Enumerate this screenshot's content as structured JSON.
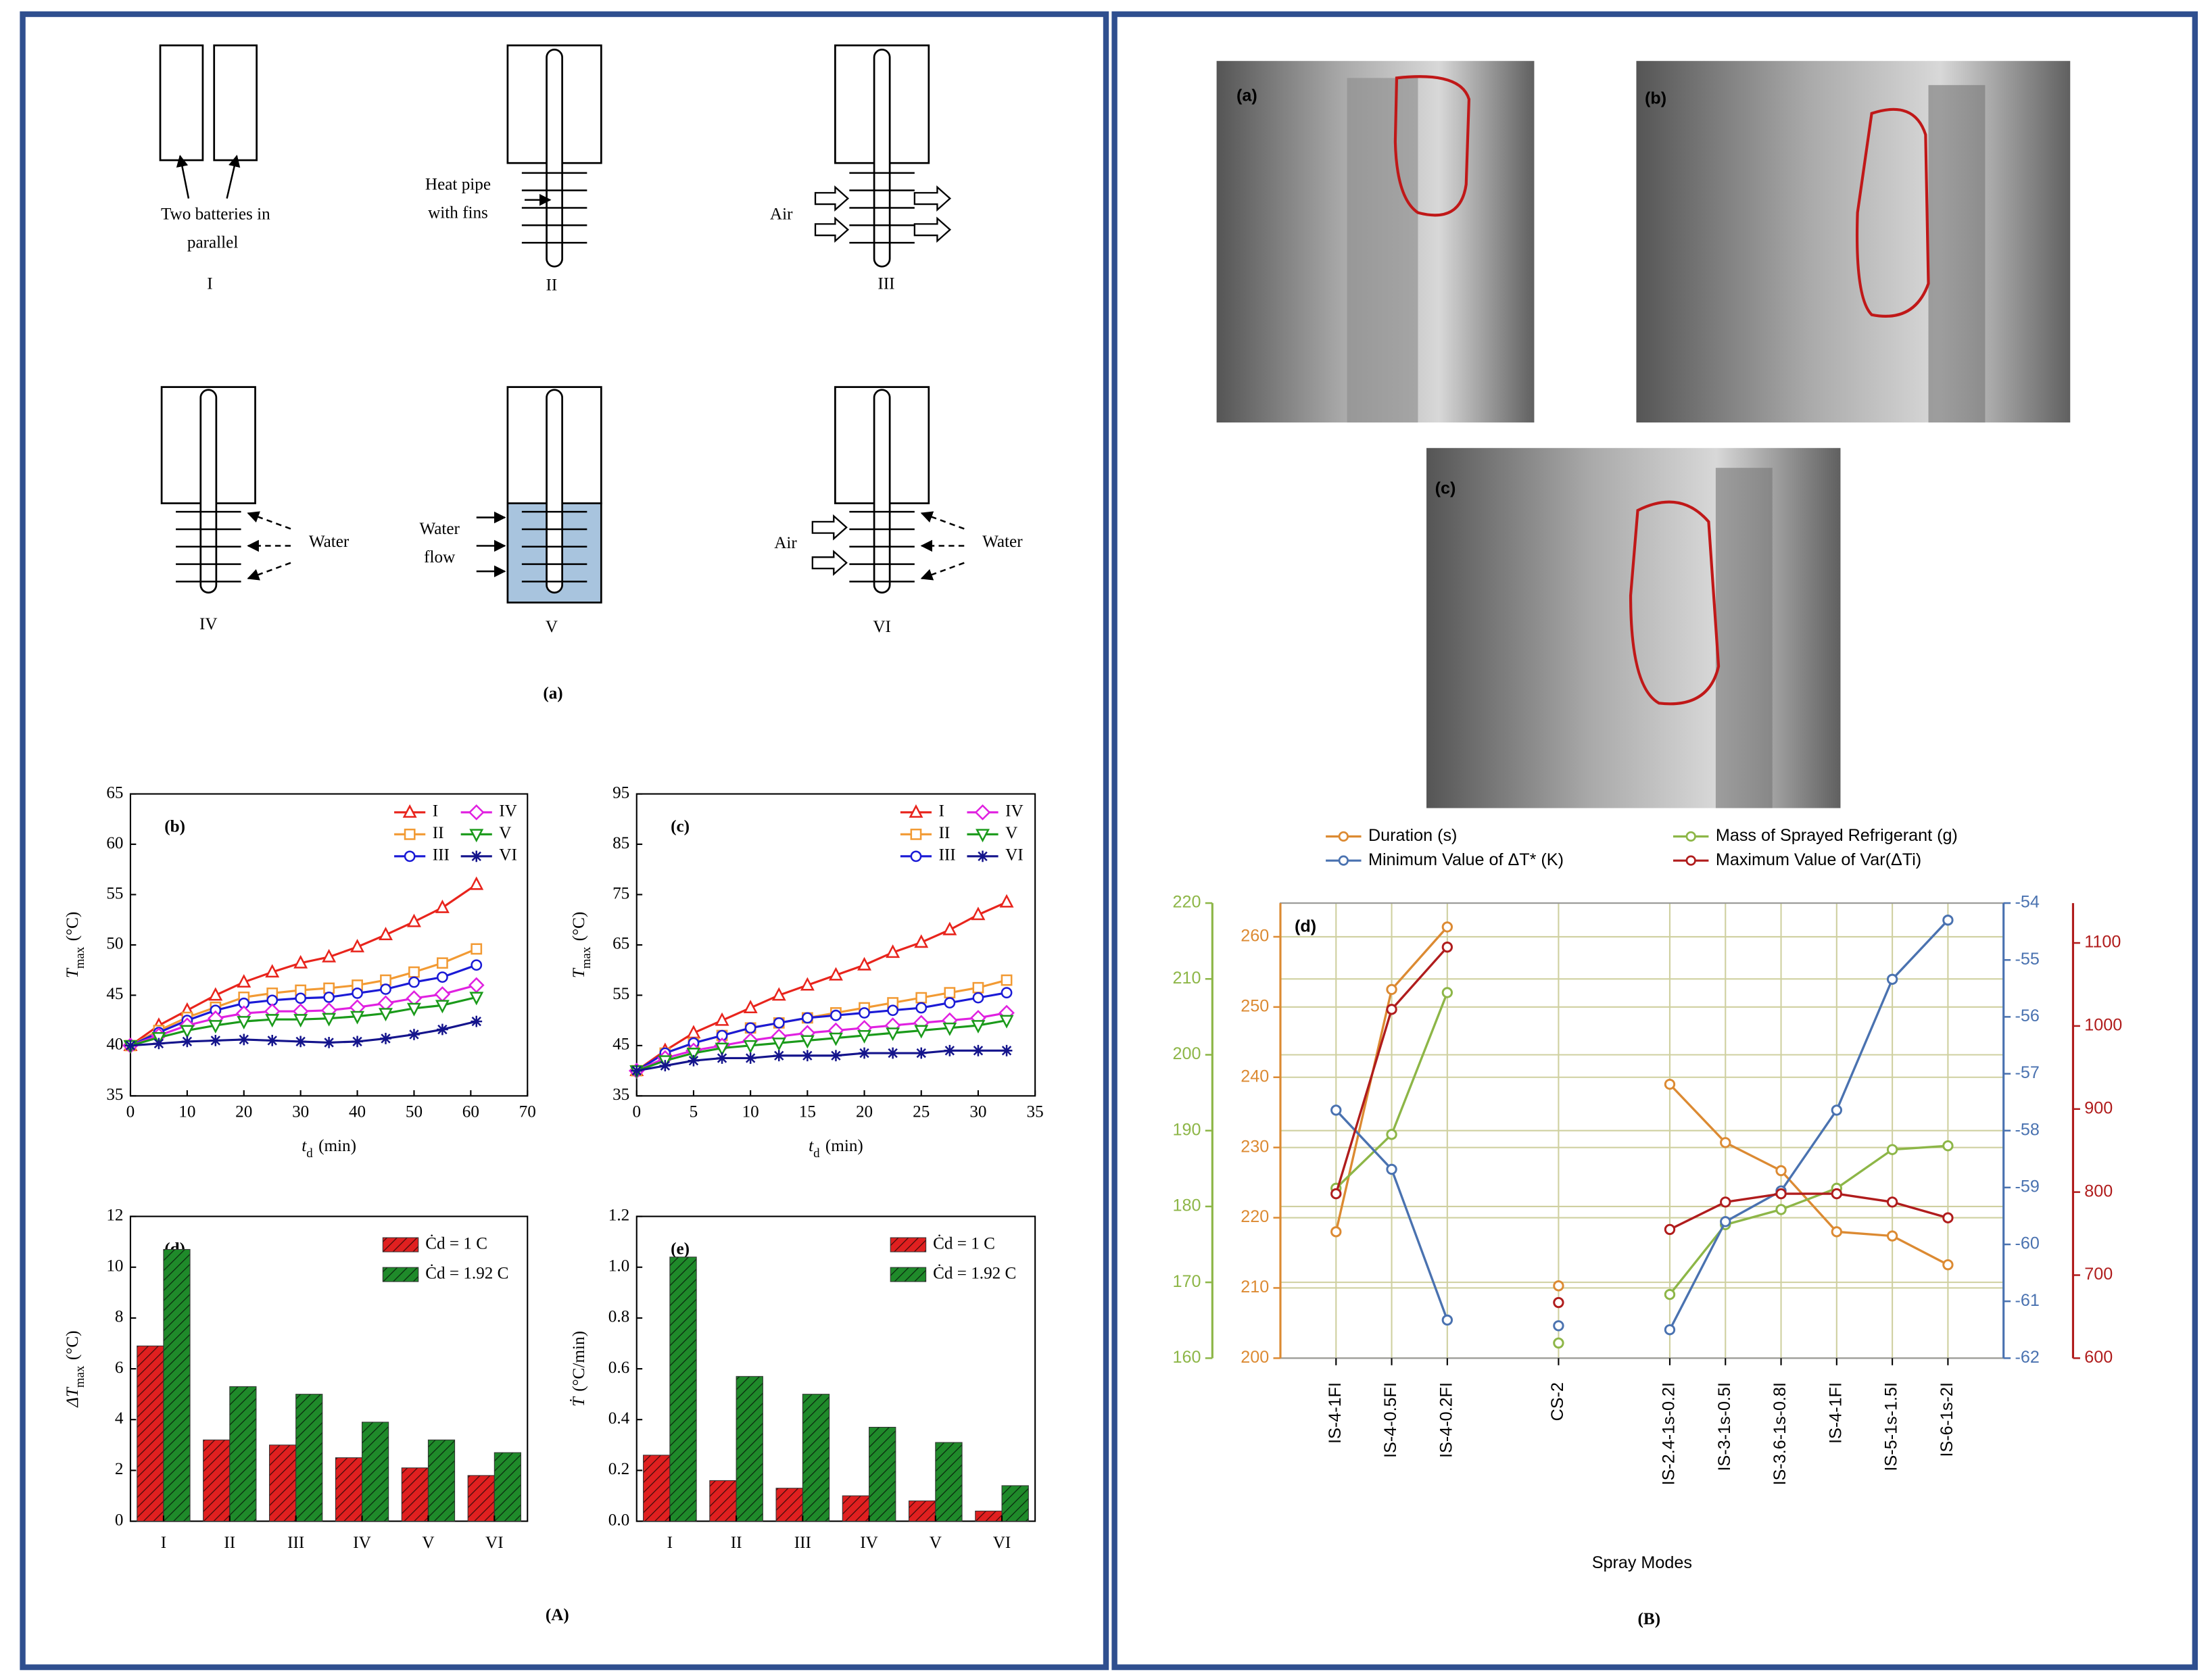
{
  "panel_labels": [
    "(A)",
    "(B)"
  ],
  "diagram": {
    "label": "(a)",
    "configs": [
      "I",
      "II",
      "III",
      "IV",
      "V",
      "VI"
    ],
    "annotations": [
      [
        "Two batteries in",
        "parallel"
      ],
      [
        "Heat pipe",
        "with fins"
      ],
      [
        "Air"
      ],
      [
        "Water"
      ],
      [
        "Water",
        "flow"
      ],
      [
        "Air"
      ],
      [
        "Water"
      ]
    ]
  },
  "photos": {
    "labels": [
      "(a)",
      "(b)",
      "(c)"
    ]
  },
  "chart_data": [
    {
      "type": "line",
      "label": "(b)",
      "xlabel": [
        "t",
        "d",
        "(min)"
      ],
      "ylabel": [
        "T",
        "max",
        "(°C)"
      ],
      "xlim": [
        0,
        70
      ],
      "xticks": [
        0,
        10,
        20,
        30,
        40,
        50,
        60,
        70
      ],
      "ylim": [
        35,
        65
      ],
      "yticks": [
        35,
        40,
        45,
        50,
        55,
        60,
        65
      ],
      "x": [
        0,
        5,
        10,
        15,
        20,
        25,
        30,
        35,
        40,
        45,
        50,
        55,
        61
      ],
      "series": [
        {
          "name": "I",
          "color": "#e8241c",
          "marker": "triangle",
          "values": [
            40,
            42,
            43.5,
            45,
            46.3,
            47.3,
            48.2,
            48.8,
            49.8,
            51,
            52.3,
            53.7,
            56
          ]
        },
        {
          "name": "II",
          "color": "#f29a33",
          "marker": "square",
          "values": [
            40,
            41.5,
            42.8,
            43.8,
            44.8,
            45.2,
            45.5,
            45.7,
            46,
            46.5,
            47.3,
            48.2,
            49.6
          ]
        },
        {
          "name": "III",
          "color": "#1a1ad6",
          "marker": "circle",
          "values": [
            40,
            41.3,
            42.5,
            43.5,
            44.2,
            44.5,
            44.7,
            44.8,
            45.2,
            45.6,
            46.3,
            46.8,
            48
          ]
        },
        {
          "name": "IV",
          "color": "#e020e0",
          "marker": "diamond",
          "values": [
            40,
            41,
            42,
            42.7,
            43.2,
            43.4,
            43.4,
            43.5,
            43.8,
            44.2,
            44.7,
            45.1,
            46
          ]
        },
        {
          "name": "V",
          "color": "#1a9a1a",
          "marker": "triangle-down",
          "values": [
            40,
            40.8,
            41.5,
            42,
            42.4,
            42.6,
            42.6,
            42.7,
            42.9,
            43.2,
            43.7,
            44,
            44.8
          ]
        },
        {
          "name": "VI",
          "color": "#14148c",
          "marker": "asterisk",
          "values": [
            40,
            40.2,
            40.4,
            40.5,
            40.6,
            40.5,
            40.4,
            40.3,
            40.4,
            40.7,
            41.1,
            41.6,
            42.4
          ]
        }
      ]
    },
    {
      "type": "line",
      "label": "(c)",
      "xlabel": [
        "t",
        "d",
        "(min)"
      ],
      "ylabel": [
        "T",
        "max",
        "(°C)"
      ],
      "xlim": [
        0,
        35
      ],
      "xticks": [
        0,
        5,
        10,
        15,
        20,
        25,
        30,
        35
      ],
      "ylim": [
        35,
        95
      ],
      "yticks": [
        35,
        45,
        55,
        65,
        75,
        85,
        95
      ],
      "x": [
        0,
        2.5,
        5,
        7.5,
        10,
        12.5,
        15,
        17.5,
        20,
        22.5,
        25,
        27.5,
        30,
        32.5
      ],
      "series": [
        {
          "name": "I",
          "color": "#e8241c",
          "marker": "triangle",
          "values": [
            40,
            44,
            47.5,
            50,
            52.5,
            55,
            57,
            59,
            61,
            63.5,
            65.5,
            68,
            71,
            73.5
          ]
        },
        {
          "name": "II",
          "color": "#f29a33",
          "marker": "square",
          "values": [
            40,
            43.5,
            45.5,
            47,
            48.5,
            49.5,
            50.5,
            51.5,
            52.5,
            53.5,
            54.5,
            55.5,
            56.5,
            58
          ]
        },
        {
          "name": "III",
          "color": "#1a1ad6",
          "marker": "circle",
          "values": [
            40,
            43.5,
            45.5,
            47,
            48.5,
            49.5,
            50.5,
            51,
            51.5,
            52,
            52.5,
            53.5,
            54.5,
            55.5
          ]
        },
        {
          "name": "IV",
          "color": "#e020e0",
          "marker": "diamond",
          "values": [
            40,
            42.5,
            44,
            45,
            46,
            46.8,
            47.5,
            48,
            48.5,
            49,
            49.5,
            50,
            50.5,
            51.5
          ]
        },
        {
          "name": "V",
          "color": "#1a9a1a",
          "marker": "triangle-down",
          "values": [
            40,
            42,
            43.5,
            44.5,
            45,
            45.5,
            46,
            46.5,
            47,
            47.5,
            48,
            48.5,
            49,
            50
          ]
        },
        {
          "name": "VI",
          "color": "#14148c",
          "marker": "asterisk",
          "values": [
            40,
            41,
            42,
            42.5,
            42.5,
            43,
            43,
            43,
            43.5,
            43.5,
            43.5,
            44,
            44,
            44
          ]
        }
      ]
    },
    {
      "type": "bar",
      "label": "(d)",
      "ylabel": [
        "ΔT",
        "max",
        "(°C)"
      ],
      "hatch": true,
      "ylim": [
        0,
        12
      ],
      "yticks": [
        0,
        2,
        4,
        6,
        8,
        10,
        12
      ],
      "categories": [
        "I",
        "II",
        "III",
        "IV",
        "V",
        "VI"
      ],
      "series": [
        {
          "name": "Ċd = 1 C",
          "color": "#e02020",
          "values": [
            6.9,
            3.2,
            3.0,
            2.5,
            2.1,
            1.8
          ]
        },
        {
          "name": "Ċd = 1.92 C",
          "color": "#1f8a2a",
          "values": [
            10.7,
            5.3,
            5.0,
            3.9,
            3.2,
            2.7
          ]
        }
      ]
    },
    {
      "type": "bar",
      "label": "(e)",
      "ylabel": [
        "Ṫ",
        "(°C/min)"
      ],
      "hatch": true,
      "ylim": [
        0,
        1.2
      ],
      "yticks": [
        {
          "value": 0,
          "label": "0.0"
        },
        0.2,
        0.4,
        0.6,
        0.8,
        {
          "value": 1,
          "label": "1.0"
        },
        1.2
      ],
      "categories": [
        "I",
        "II",
        "III",
        "IV",
        "V",
        "VI"
      ],
      "series": [
        {
          "name": "Ċd = 1 C",
          "color": "#e02020",
          "values": [
            0.26,
            0.16,
            0.13,
            0.1,
            0.08,
            0.04
          ]
        },
        {
          "name": "Ċd = 1.92 C",
          "color": "#1f8a2a",
          "values": [
            1.04,
            0.57,
            0.5,
            0.37,
            0.31,
            0.14
          ]
        }
      ]
    },
    {
      "type": "line",
      "label": "(d)",
      "xlabel": "Spray Modes",
      "grid": true,
      "categories": [
        "IS-4-1FI",
        "IS-4-0.5FI",
        "IS-4-0.2FI",
        null,
        "CS-2",
        null,
        "IS-2.4-1s-0.2I",
        "IS-3-1s-0.5I",
        "IS-3.6-1s-0.8I",
        "IS-4-1FI",
        "IS-5-1s-1.5I",
        "IS-6-1s-2I"
      ],
      "ylim": [
        200,
        264.8
      ],
      "yticks": [
        200,
        210,
        220,
        230,
        240,
        250,
        260
      ],
      "y2lim": [
        -62,
        -54
      ],
      "y2ticks": [
        -62,
        -61,
        -60,
        -59,
        -58,
        -57,
        -56,
        -55,
        -54
      ],
      "y3lim": [
        160,
        220
      ],
      "y3ticks": [
        160,
        170,
        180,
        190,
        200,
        210,
        220
      ],
      "y4lim": [
        600,
        1148
      ],
      "y4ticks": [
        600,
        700,
        800,
        900,
        1000,
        1100
      ],
      "series": [
        {
          "name": "Duration (s)",
          "color": "#dc8a32",
          "axis": "y",
          "values": [
            218,
            252.5,
            261.4,
            null,
            210.3,
            null,
            239,
            230.7,
            226.7,
            218,
            217.4,
            213.3
          ]
        },
        {
          "name": "Mass of Sprayed Refrigerant (g)",
          "color": "#8db647",
          "axis": "y3",
          "values": [
            182.4,
            189.5,
            208.2,
            null,
            162,
            null,
            168.4,
            177.6,
            179.6,
            182.4,
            187.5,
            188
          ]
        },
        {
          "name": "Minimum Value of ΔT* (K)",
          "color": "#4a72b0",
          "axis": "y2",
          "values": [
            -57.64,
            -58.68,
            -61.33,
            null,
            -61.43,
            null,
            -61.5,
            -59.6,
            -59.06,
            -57.64,
            -55.34,
            -54.3
          ]
        },
        {
          "name": "Maximum Value of Var(ΔTi)",
          "color": "#b01c1c",
          "axis": "y4",
          "values": [
            798,
            1020,
            1095,
            null,
            667,
            null,
            755,
            788,
            798,
            798,
            788,
            769
          ]
        }
      ]
    }
  ]
}
